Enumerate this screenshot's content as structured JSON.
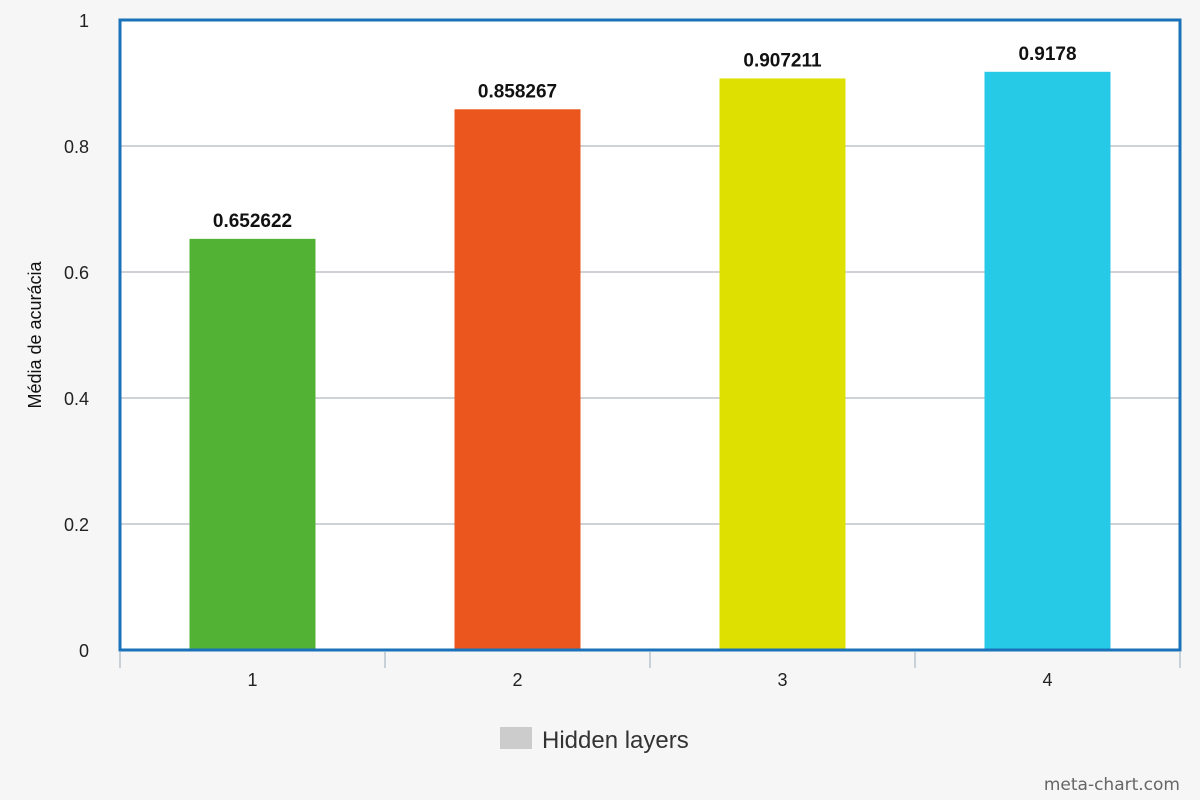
{
  "chart_data": {
    "type": "bar",
    "categories": [
      "1",
      "2",
      "3",
      "4"
    ],
    "values": [
      0.652622,
      0.858267,
      0.907211,
      0.9178
    ],
    "data_labels": [
      "0.652622",
      "0.858267",
      "0.907211",
      "0.9178"
    ],
    "colors": [
      "#52b234",
      "#eb561e",
      "#dde000",
      "#26c9e6"
    ],
    "title": "",
    "xlabel": "",
    "ylabel": "Média de acurácia",
    "ylim": [
      0,
      1
    ],
    "yticks": [
      0,
      0.2,
      0.4,
      0.6,
      0.8,
      1
    ],
    "ytick_labels": [
      "0",
      "0.2",
      "0.4",
      "0.6",
      "0.8",
      "1"
    ],
    "grid": true,
    "legend": {
      "position": "bottom",
      "entries": [
        {
          "label": "Hidden layers",
          "color": "#cccccc"
        }
      ]
    }
  },
  "credit": "meta-chart.com",
  "colors": {
    "frame": "#1a72ba",
    "grid": "#bfc3c8",
    "background": "#f6f6f6",
    "plot_background": "#ffffff"
  }
}
